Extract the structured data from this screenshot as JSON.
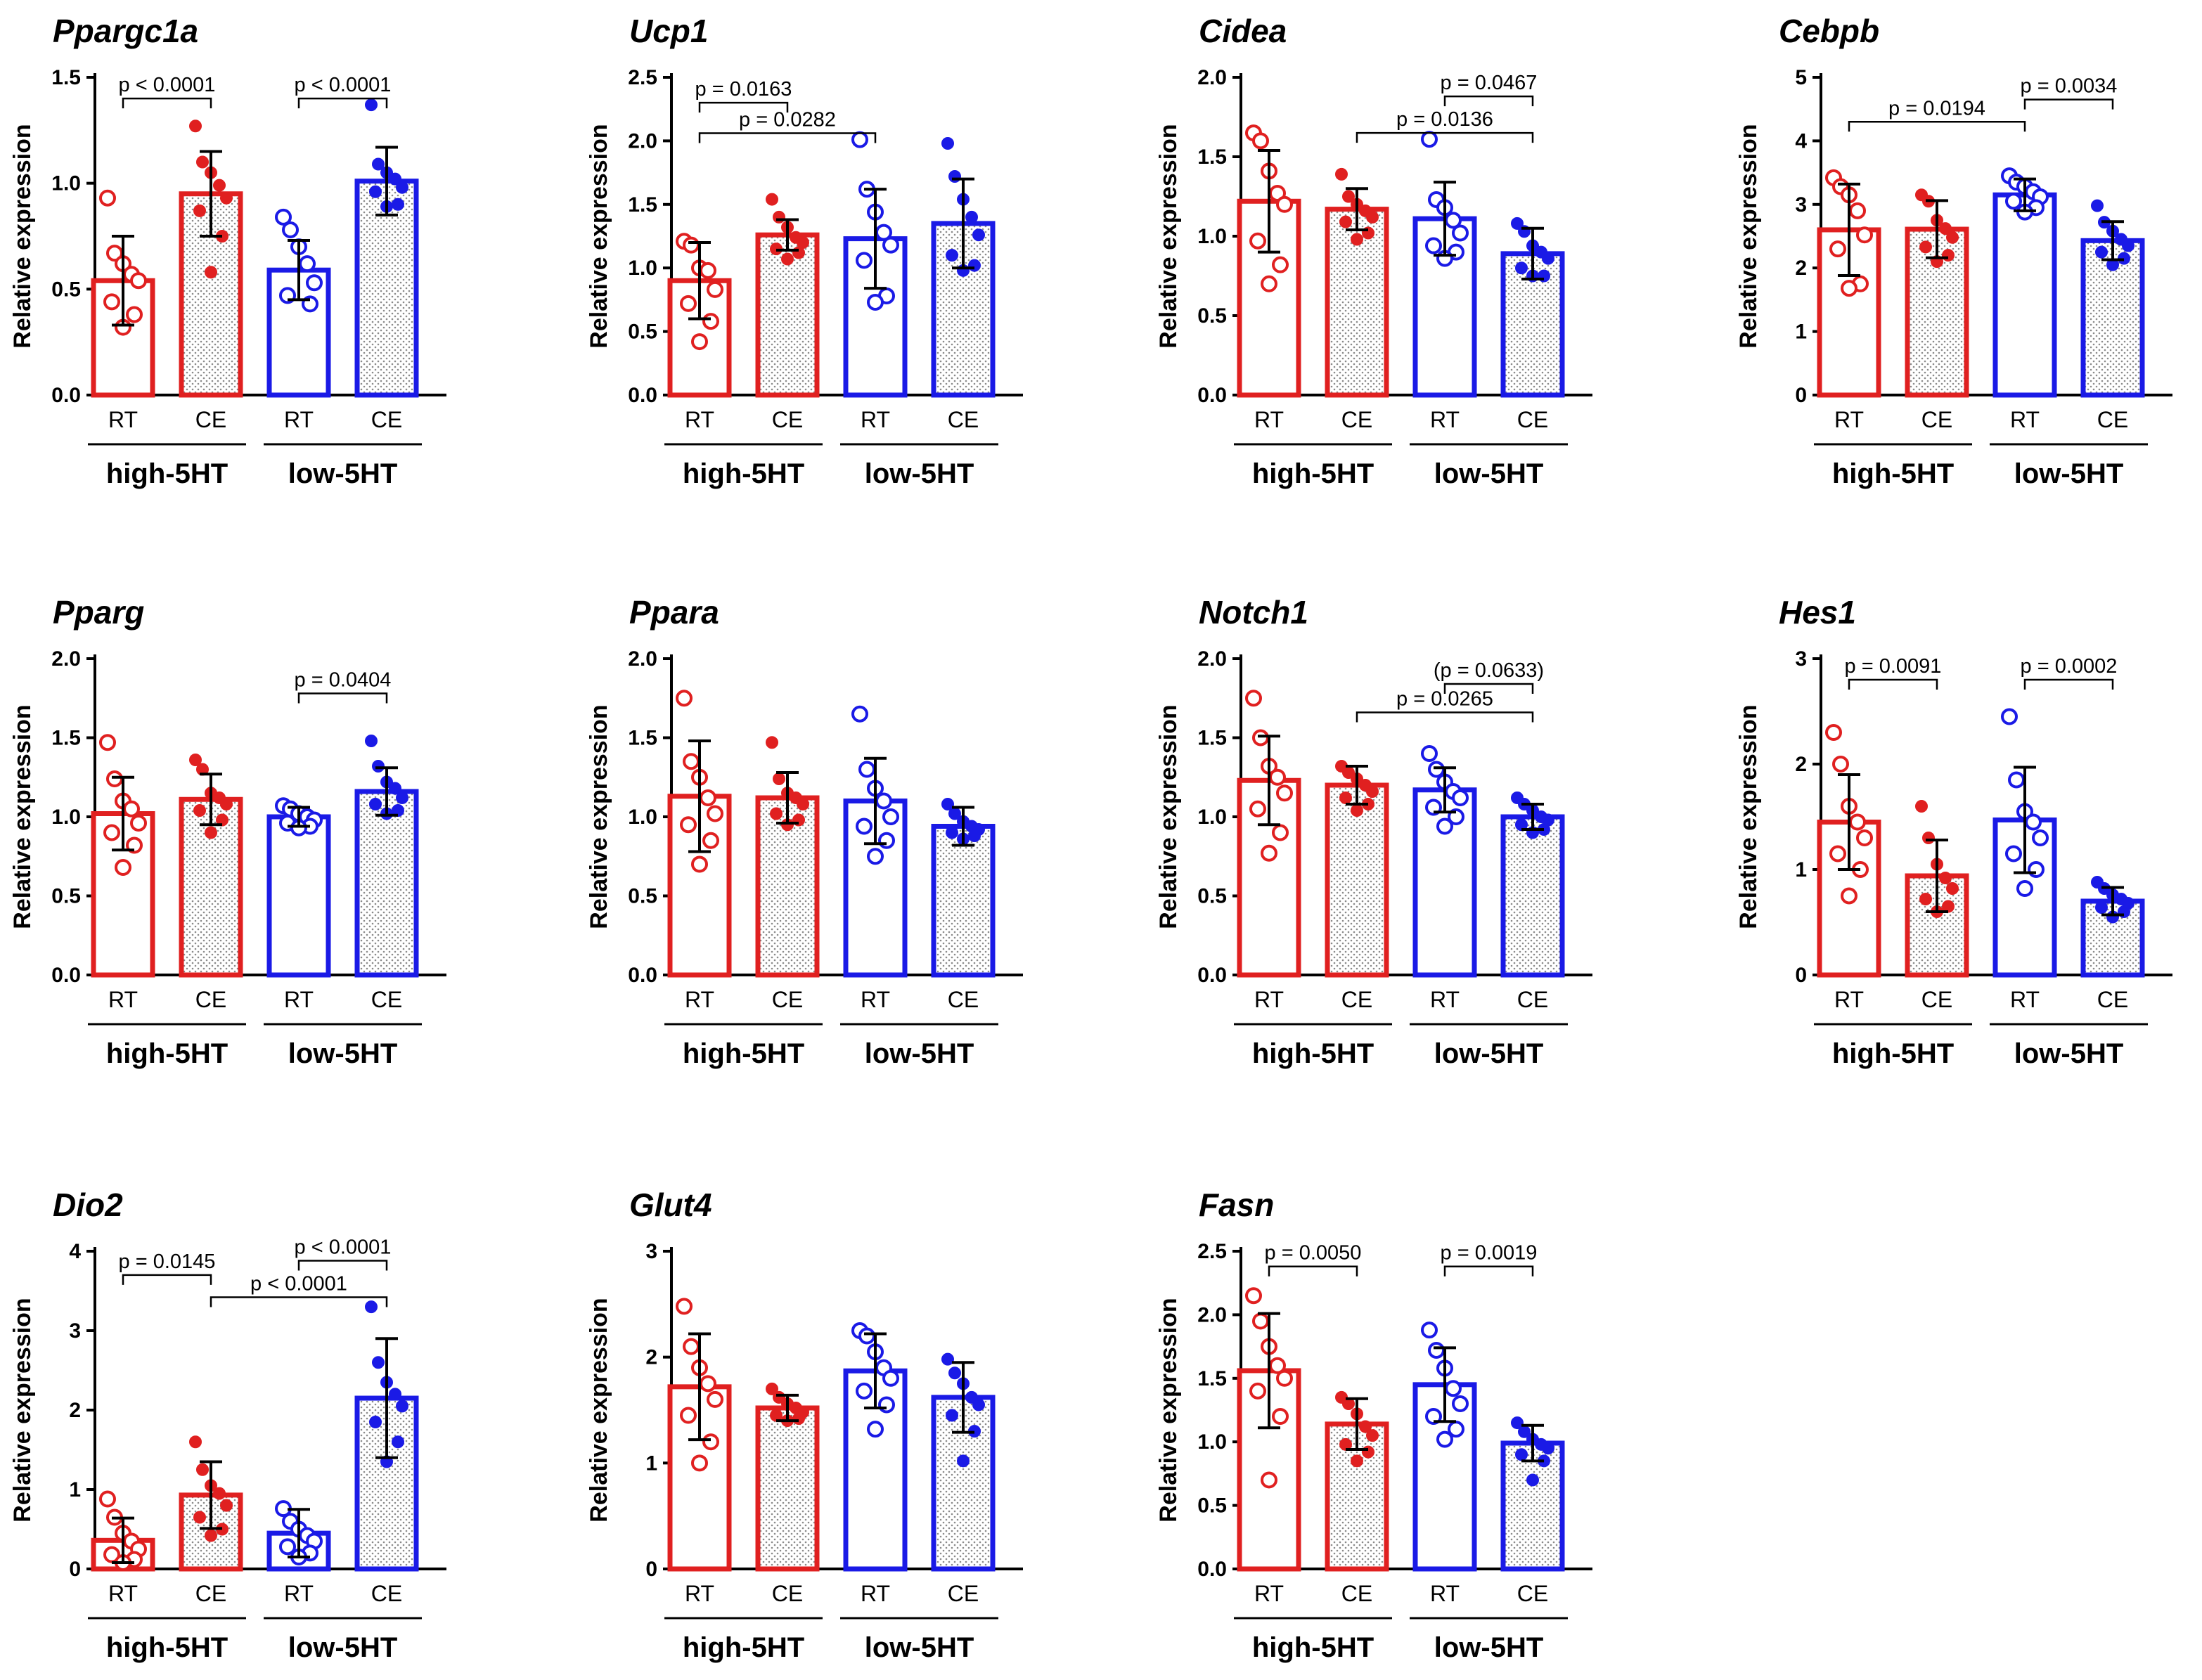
{
  "colors": {
    "high": "#e02020",
    "low": "#1a1ae6",
    "axis": "#000000",
    "pattern": "#8a8a8a"
  },
  "common": {
    "ylabel": "Relative expression",
    "categories": [
      "RT",
      "CE",
      "RT",
      "CE"
    ],
    "groups": [
      "high-5HT",
      "low-5HT"
    ]
  },
  "chart_data": [
    {
      "type": "bar",
      "title": "Ppargc1a",
      "ylim": [
        0,
        1.5
      ],
      "yticks": [
        "0.0",
        "0.5",
        "1.0",
        "1.5"
      ],
      "means": [
        0.54,
        0.95,
        0.59,
        1.01
      ],
      "sd": [
        0.21,
        0.2,
        0.14,
        0.16
      ],
      "points": [
        [
          0.93,
          0.67,
          0.62,
          0.57,
          0.54,
          0.44,
          0.38,
          0.32
        ],
        [
          1.27,
          1.1,
          1.05,
          0.99,
          0.93,
          0.87,
          0.75,
          0.58
        ],
        [
          0.84,
          0.78,
          0.7,
          0.62,
          0.53,
          0.47,
          0.43
        ],
        [
          1.37,
          1.09,
          1.05,
          1.02,
          0.98,
          0.96,
          0.9,
          0.89
        ]
      ],
      "comparisons": [
        {
          "a": 0,
          "b": 1,
          "label": "p < 0.0001",
          "y": 1.4
        },
        {
          "a": 2,
          "b": 3,
          "label": "p < 0.0001",
          "y": 1.4
        }
      ]
    },
    {
      "type": "bar",
      "title": "Ucp1",
      "ylim": [
        0,
        2.5
      ],
      "yticks": [
        "0.0",
        "0.5",
        "1.0",
        "1.5",
        "2.0",
        "2.5"
      ],
      "means": [
        0.9,
        1.26,
        1.23,
        1.35
      ],
      "sd": [
        0.3,
        0.12,
        0.39,
        0.35
      ],
      "points": [
        [
          1.21,
          1.18,
          1.0,
          0.98,
          0.83,
          0.72,
          0.58,
          0.42
        ],
        [
          1.54,
          1.4,
          1.32,
          1.24,
          1.2,
          1.15,
          1.12,
          1.07
        ],
        [
          2.01,
          1.62,
          1.44,
          1.28,
          1.18,
          1.06,
          0.78,
          0.73
        ],
        [
          1.98,
          1.72,
          1.54,
          1.4,
          1.26,
          1.1,
          1.02,
          0.98
        ]
      ],
      "comparisons": [
        {
          "a": 0,
          "b": 1,
          "label": "p = 0.0163",
          "y": 2.3
        },
        {
          "a": 0,
          "b": 2,
          "label": "p = 0.0282",
          "y": 2.06
        }
      ]
    },
    {
      "type": "bar",
      "title": "Cidea",
      "ylim": [
        0,
        2.0
      ],
      "yticks": [
        "0.0",
        "0.5",
        "1.0",
        "1.5",
        "2.0"
      ],
      "means": [
        1.22,
        1.17,
        1.11,
        0.89
      ],
      "sd": [
        0.32,
        0.13,
        0.23,
        0.16
      ],
      "points": [
        [
          1.65,
          1.6,
          1.41,
          1.27,
          1.2,
          0.97,
          0.82,
          0.7
        ],
        [
          1.39,
          1.25,
          1.2,
          1.16,
          1.12,
          1.09,
          1.02,
          0.98
        ],
        [
          1.61,
          1.23,
          1.18,
          1.1,
          1.02,
          0.94,
          0.9,
          0.86
        ],
        [
          1.08,
          1.03,
          0.94,
          0.9,
          0.86,
          0.8,
          0.75,
          0.75
        ]
      ],
      "comparisons": [
        {
          "a": 2,
          "b": 3,
          "label": "p = 0.0467",
          "y": 1.88
        },
        {
          "a": 1,
          "b": 3,
          "label": "p = 0.0136",
          "y": 1.65
        }
      ]
    },
    {
      "type": "bar",
      "title": "Cebpb",
      "ylim": [
        0,
        5
      ],
      "yticks": [
        "0",
        "1",
        "2",
        "3",
        "4",
        "5"
      ],
      "means": [
        2.6,
        2.61,
        3.15,
        2.43
      ],
      "sd": [
        0.72,
        0.45,
        0.25,
        0.3
      ],
      "points": [
        [
          3.42,
          3.28,
          3.15,
          2.9,
          2.52,
          2.3,
          1.75,
          1.68
        ],
        [
          3.15,
          3.05,
          2.75,
          2.62,
          2.48,
          2.33,
          2.2,
          2.1
        ],
        [
          3.45,
          3.35,
          3.28,
          3.2,
          3.12,
          3.05,
          2.95,
          2.88
        ],
        [
          2.98,
          2.72,
          2.58,
          2.45,
          2.35,
          2.25,
          2.15,
          2.05
        ]
      ],
      "comparisons": [
        {
          "a": 0,
          "b": 2,
          "label": "p = 0.0194",
          "y": 4.3
        },
        {
          "a": 2,
          "b": 3,
          "label": "p = 0.0034",
          "y": 4.65
        }
      ]
    },
    {
      "type": "bar",
      "title": "Pparg",
      "ylim": [
        0,
        2.0
      ],
      "yticks": [
        "0.0",
        "0.5",
        "1.0",
        "1.5",
        "2.0"
      ],
      "means": [
        1.02,
        1.11,
        1.0,
        1.16
      ],
      "sd": [
        0.23,
        0.16,
        0.06,
        0.15
      ],
      "points": [
        [
          1.47,
          1.24,
          1.1,
          1.05,
          0.96,
          0.9,
          0.82,
          0.68
        ],
        [
          1.36,
          1.3,
          1.15,
          1.12,
          1.08,
          1.04,
          0.98,
          0.9
        ],
        [
          1.07,
          1.05,
          1.02,
          1.0,
          0.98,
          0.96,
          0.94,
          0.93
        ],
        [
          1.48,
          1.32,
          1.22,
          1.18,
          1.12,
          1.08,
          1.04,
          1.02
        ]
      ],
      "comparisons": [
        {
          "a": 2,
          "b": 3,
          "label": "p = 0.0404",
          "y": 1.78
        }
      ]
    },
    {
      "type": "bar",
      "title": "Ppara",
      "ylim": [
        0,
        2.0
      ],
      "yticks": [
        "0.0",
        "0.5",
        "1.0",
        "1.5",
        "2.0"
      ],
      "means": [
        1.13,
        1.12,
        1.1,
        0.94
      ],
      "sd": [
        0.35,
        0.16,
        0.27,
        0.12
      ],
      "points": [
        [
          1.75,
          1.35,
          1.25,
          1.12,
          1.02,
          0.95,
          0.85,
          0.7
        ],
        [
          1.47,
          1.24,
          1.15,
          1.12,
          1.08,
          1.02,
          0.98,
          0.95
        ],
        [
          1.65,
          1.3,
          1.18,
          1.1,
          1.0,
          0.94,
          0.85,
          0.75
        ],
        [
          1.08,
          1.02,
          0.97,
          0.94,
          0.92,
          0.9,
          0.88,
          0.86
        ]
      ],
      "comparisons": []
    },
    {
      "type": "bar",
      "title": "Notch1",
      "ylim": [
        0,
        2.0
      ],
      "yticks": [
        "0.0",
        "0.5",
        "1.0",
        "1.5",
        "2.0"
      ],
      "means": [
        1.23,
        1.2,
        1.17,
        1.0
      ],
      "sd": [
        0.28,
        0.12,
        0.14,
        0.08
      ],
      "points": [
        [
          1.75,
          1.5,
          1.32,
          1.25,
          1.15,
          1.05,
          0.9,
          0.77
        ],
        [
          1.32,
          1.28,
          1.24,
          1.2,
          1.16,
          1.12,
          1.08,
          1.04
        ],
        [
          1.4,
          1.3,
          1.22,
          1.16,
          1.12,
          1.06,
          1.0,
          0.94
        ],
        [
          1.12,
          1.08,
          1.04,
          1.0,
          0.98,
          0.95,
          0.92,
          0.9
        ]
      ],
      "comparisons": [
        {
          "a": 2,
          "b": 3,
          "label": "(p = 0.0633)",
          "y": 1.84
        },
        {
          "a": 1,
          "b": 3,
          "label": "p = 0.0265",
          "y": 1.66
        }
      ]
    },
    {
      "type": "bar",
      "title": "Hes1",
      "ylim": [
        0,
        3
      ],
      "yticks": [
        "0",
        "1",
        "2",
        "3"
      ],
      "means": [
        1.45,
        0.94,
        1.47,
        0.7
      ],
      "sd": [
        0.45,
        0.34,
        0.5,
        0.13
      ],
      "points": [
        [
          2.3,
          2.0,
          1.6,
          1.45,
          1.3,
          1.15,
          1.0,
          0.75
        ],
        [
          1.6,
          1.3,
          1.05,
          0.92,
          0.82,
          0.72,
          0.65,
          0.6
        ],
        [
          2.45,
          1.85,
          1.55,
          1.45,
          1.3,
          1.15,
          1.0,
          0.82
        ],
        [
          0.88,
          0.82,
          0.76,
          0.72,
          0.68,
          0.64,
          0.6,
          0.55
        ]
      ],
      "comparisons": [
        {
          "a": 0,
          "b": 1,
          "label": "p = 0.0091",
          "y": 2.8
        },
        {
          "a": 2,
          "b": 3,
          "label": "p = 0.0002",
          "y": 2.8
        }
      ]
    },
    {
      "type": "bar",
      "title": "Dio2",
      "ylim": [
        0,
        4
      ],
      "yticks": [
        "0",
        "1",
        "2",
        "3",
        "4"
      ],
      "means": [
        0.36,
        0.93,
        0.45,
        2.15
      ],
      "sd": [
        0.28,
        0.42,
        0.3,
        0.75
      ],
      "points": [
        [
          0.88,
          0.65,
          0.45,
          0.35,
          0.25,
          0.18,
          0.12,
          0.08
        ],
        [
          1.6,
          1.25,
          1.05,
          0.95,
          0.8,
          0.65,
          0.5,
          0.42
        ],
        [
          0.76,
          0.6,
          0.5,
          0.42,
          0.35,
          0.28,
          0.2,
          0.15
        ],
        [
          3.3,
          2.6,
          2.35,
          2.2,
          2.05,
          1.85,
          1.6,
          1.35
        ]
      ],
      "comparisons": [
        {
          "a": 0,
          "b": 1,
          "label": "p = 0.0145",
          "y": 3.7
        },
        {
          "a": 2,
          "b": 3,
          "label": "p < 0.0001",
          "y": 3.88
        },
        {
          "a": 1,
          "b": 3,
          "label": "p < 0.0001",
          "y": 3.42
        }
      ]
    },
    {
      "type": "bar",
      "title": "Glut4",
      "ylim": [
        0,
        3
      ],
      "yticks": [
        "0",
        "1",
        "2",
        "3"
      ],
      "means": [
        1.72,
        1.52,
        1.87,
        1.62
      ],
      "sd": [
        0.5,
        0.12,
        0.35,
        0.33
      ],
      "points": [
        [
          2.48,
          2.1,
          1.9,
          1.75,
          1.6,
          1.45,
          1.2,
          1.0
        ],
        [
          1.7,
          1.62,
          1.56,
          1.52,
          1.48,
          1.45,
          1.42,
          1.4
        ],
        [
          2.25,
          2.2,
          2.05,
          1.9,
          1.8,
          1.68,
          1.55,
          1.32
        ],
        [
          1.98,
          1.85,
          1.75,
          1.62,
          1.55,
          1.45,
          1.3,
          1.02
        ]
      ],
      "comparisons": []
    },
    {
      "type": "bar",
      "title": "Fasn",
      "ylim": [
        0,
        2.5
      ],
      "yticks": [
        "0.0",
        "0.5",
        "1.0",
        "1.5",
        "2.0",
        "2.5"
      ],
      "means": [
        1.56,
        1.14,
        1.45,
        0.99
      ],
      "sd": [
        0.45,
        0.2,
        0.29,
        0.14
      ],
      "points": [
        [
          2.15,
          1.95,
          1.75,
          1.6,
          1.5,
          1.4,
          1.2,
          0.7
        ],
        [
          1.35,
          1.3,
          1.22,
          1.12,
          1.05,
          0.98,
          0.92,
          0.85
        ],
        [
          1.88,
          1.72,
          1.58,
          1.42,
          1.3,
          1.2,
          1.1,
          1.02
        ],
        [
          1.15,
          1.08,
          1.02,
          0.98,
          0.95,
          0.9,
          0.85,
          0.7
        ]
      ],
      "comparisons": [
        {
          "a": 0,
          "b": 1,
          "label": "p = 0.0050",
          "y": 2.38
        },
        {
          "a": 2,
          "b": 3,
          "label": "p = 0.0019",
          "y": 2.38
        }
      ]
    }
  ]
}
